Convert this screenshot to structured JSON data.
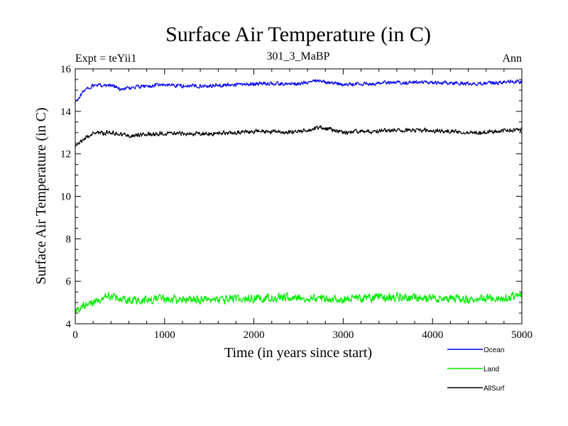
{
  "chart_data": {
    "type": "line",
    "title": "Surface Air Temperature (in C)",
    "subtitle_left": "Expt = teYii1",
    "subtitle_center": "301_3_MaBP",
    "subtitle_right": "Ann",
    "xlabel": "Time (in years since start)",
    "ylabel": "Surface Air Temperature (in C)",
    "xlim": [
      0,
      5000
    ],
    "ylim": [
      4,
      16
    ],
    "xticks": [
      0,
      1000,
      2000,
      3000,
      4000,
      5000
    ],
    "yticks": [
      4,
      6,
      8,
      10,
      12,
      14,
      16
    ],
    "grid": false,
    "legend_position": "bottom-right",
    "series": [
      {
        "name": "Ocean",
        "color": "#0000ee",
        "noise": 0.08,
        "anchors": [
          [
            0,
            14.4
          ],
          [
            100,
            15.0
          ],
          [
            200,
            15.2
          ],
          [
            400,
            15.25
          ],
          [
            500,
            15.05
          ],
          [
            700,
            15.15
          ],
          [
            1000,
            15.25
          ],
          [
            1200,
            15.2
          ],
          [
            1500,
            15.2
          ],
          [
            2000,
            15.3
          ],
          [
            2500,
            15.3
          ],
          [
            2750,
            15.45
          ],
          [
            3000,
            15.25
          ],
          [
            3500,
            15.35
          ],
          [
            4000,
            15.35
          ],
          [
            4500,
            15.3
          ],
          [
            5000,
            15.4
          ]
        ]
      },
      {
        "name": "Land",
        "color": "#00ee00",
        "noise": 0.18,
        "anchors": [
          [
            0,
            4.6
          ],
          [
            100,
            4.85
          ],
          [
            300,
            5.2
          ],
          [
            400,
            5.3
          ],
          [
            600,
            5.1
          ],
          [
            1000,
            5.15
          ],
          [
            1500,
            5.1
          ],
          [
            2000,
            5.2
          ],
          [
            2500,
            5.25
          ],
          [
            3000,
            5.15
          ],
          [
            3500,
            5.25
          ],
          [
            4000,
            5.2
          ],
          [
            4500,
            5.15
          ],
          [
            5000,
            5.3
          ]
        ]
      },
      {
        "name": "AllSurf",
        "color": "#000000",
        "noise": 0.09,
        "anchors": [
          [
            0,
            12.35
          ],
          [
            100,
            12.75
          ],
          [
            200,
            12.95
          ],
          [
            400,
            13.0
          ],
          [
            600,
            12.85
          ],
          [
            1000,
            12.95
          ],
          [
            1500,
            12.95
          ],
          [
            2000,
            13.05
          ],
          [
            2500,
            13.05
          ],
          [
            2750,
            13.25
          ],
          [
            3000,
            13.0
          ],
          [
            3500,
            13.1
          ],
          [
            4000,
            13.1
          ],
          [
            4500,
            13.0
          ],
          [
            5000,
            13.15
          ]
        ]
      }
    ]
  }
}
